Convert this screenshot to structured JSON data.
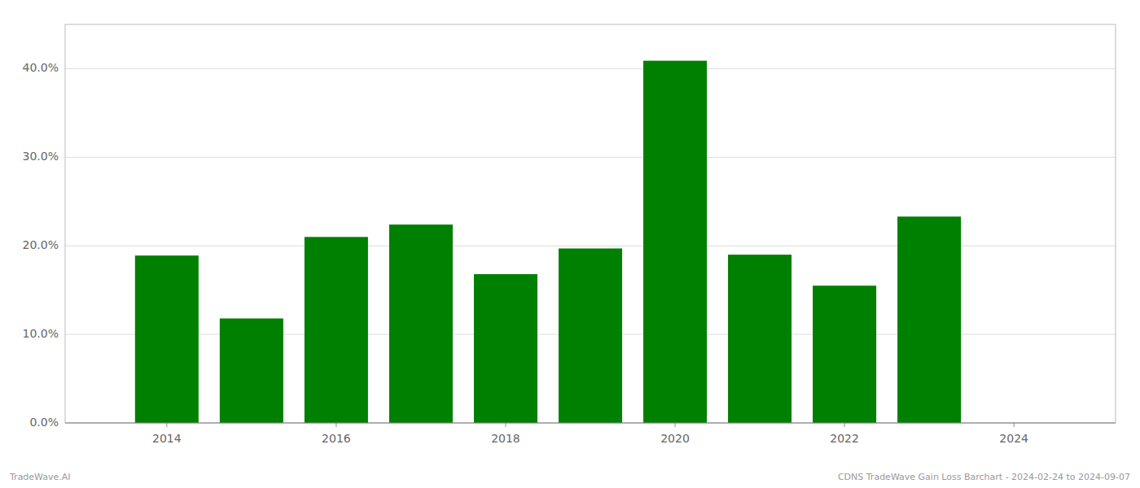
{
  "chart_data": {
    "type": "bar",
    "x": [
      2014,
      2015,
      2016,
      2017,
      2018,
      2019,
      2020,
      2021,
      2022,
      2023
    ],
    "values": [
      0.189,
      0.118,
      0.21,
      0.224,
      0.168,
      0.197,
      0.409,
      0.19,
      0.155,
      0.233
    ],
    "color": "#008000",
    "xlim": [
      2012.8,
      2025.2
    ],
    "xticks": [
      2014,
      2016,
      2018,
      2020,
      2022,
      2024
    ],
    "ylim": [
      0.0,
      0.45
    ],
    "yticks": [
      {
        "value": 0.0,
        "label": "0.0%"
      },
      {
        "value": 0.1,
        "label": "10.0%"
      },
      {
        "value": 0.2,
        "label": "20.0%"
      },
      {
        "value": 0.3,
        "label": "30.0%"
      },
      {
        "value": 0.4,
        "label": "40.0%"
      }
    ],
    "grid": true,
    "annotations": [
      "TradeWave.AI",
      "CDNS TradeWave Gain Loss Barchart - 2024-02-24 to 2024-09-07"
    ]
  }
}
